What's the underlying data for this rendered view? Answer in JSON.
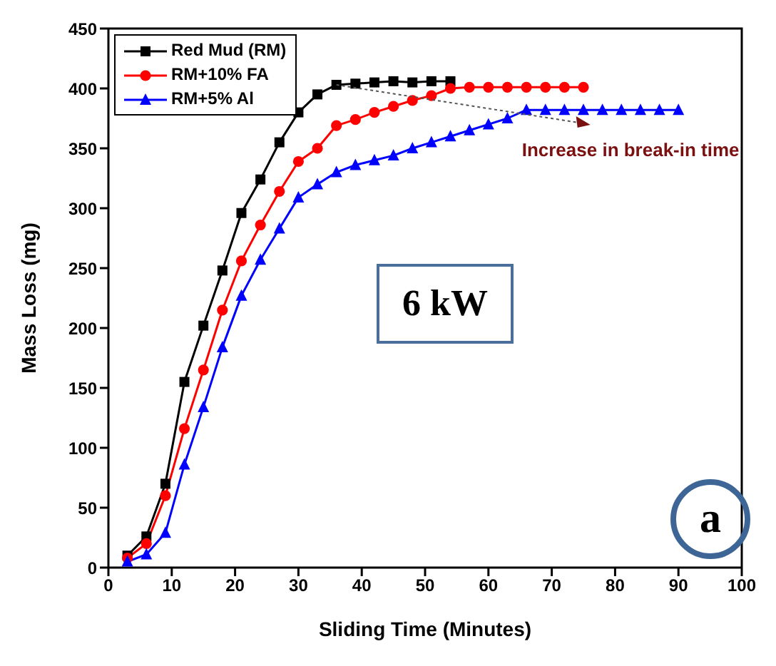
{
  "chart_data": {
    "type": "line",
    "xlabel": "Sliding Time (Minutes)",
    "ylabel": "Mass Loss (mg)",
    "xlim": [
      0,
      100
    ],
    "xticks": [
      0,
      10,
      20,
      30,
      40,
      50,
      60,
      70,
      80,
      90,
      100
    ],
    "ylim": [
      0,
      450
    ],
    "yticks": [
      0,
      50,
      100,
      150,
      200,
      250,
      300,
      350,
      400,
      450
    ],
    "grid": false,
    "legend": "top left",
    "line_style": "solid",
    "annotations": [
      {
        "text": "Increase in break-in time",
        "x": 36,
        "y": 403
      },
      "6 kW",
      "a"
    ],
    "series": [
      {
        "name": "Red Mud (RM)",
        "color": "#000000",
        "marker": "square",
        "x": [
          3,
          6,
          9,
          12,
          15,
          18,
          21,
          24,
          27,
          30,
          33,
          36,
          39,
          42,
          45,
          48,
          51,
          54
        ],
        "values": [
          10,
          26,
          70,
          155,
          202,
          248,
          296,
          324,
          355,
          380,
          395,
          403,
          404,
          405,
          406,
          405,
          406,
          406
        ]
      },
      {
        "name": "RM+10% FA",
        "color": "#ff0000",
        "marker": "circle",
        "x": [
          3,
          6,
          9,
          12,
          15,
          18,
          21,
          24,
          27,
          30,
          33,
          36,
          39,
          42,
          45,
          48,
          51,
          54,
          57,
          60,
          63,
          66,
          69,
          72,
          75
        ],
        "values": [
          8,
          20,
          60,
          116,
          165,
          215,
          256,
          286,
          314,
          339,
          350,
          369,
          374,
          380,
          385,
          390,
          394,
          400,
          401,
          401,
          401,
          401,
          401,
          401,
          401
        ]
      },
      {
        "name": "RM+5% Al",
        "color": "#0000ff",
        "marker": "triangle",
        "x": [
          3,
          6,
          9,
          12,
          15,
          18,
          21,
          24,
          27,
          30,
          33,
          36,
          39,
          42,
          45,
          48,
          51,
          54,
          57,
          60,
          63,
          66,
          69,
          72,
          75,
          78,
          81,
          84,
          87,
          90
        ],
        "values": [
          5,
          11,
          29,
          86,
          134,
          184,
          227,
          257,
          283,
          309,
          320,
          330,
          336,
          340,
          344,
          350,
          355,
          360,
          365,
          370,
          375,
          382,
          382,
          382,
          382,
          382,
          382,
          382,
          382,
          382
        ]
      }
    ]
  }
}
